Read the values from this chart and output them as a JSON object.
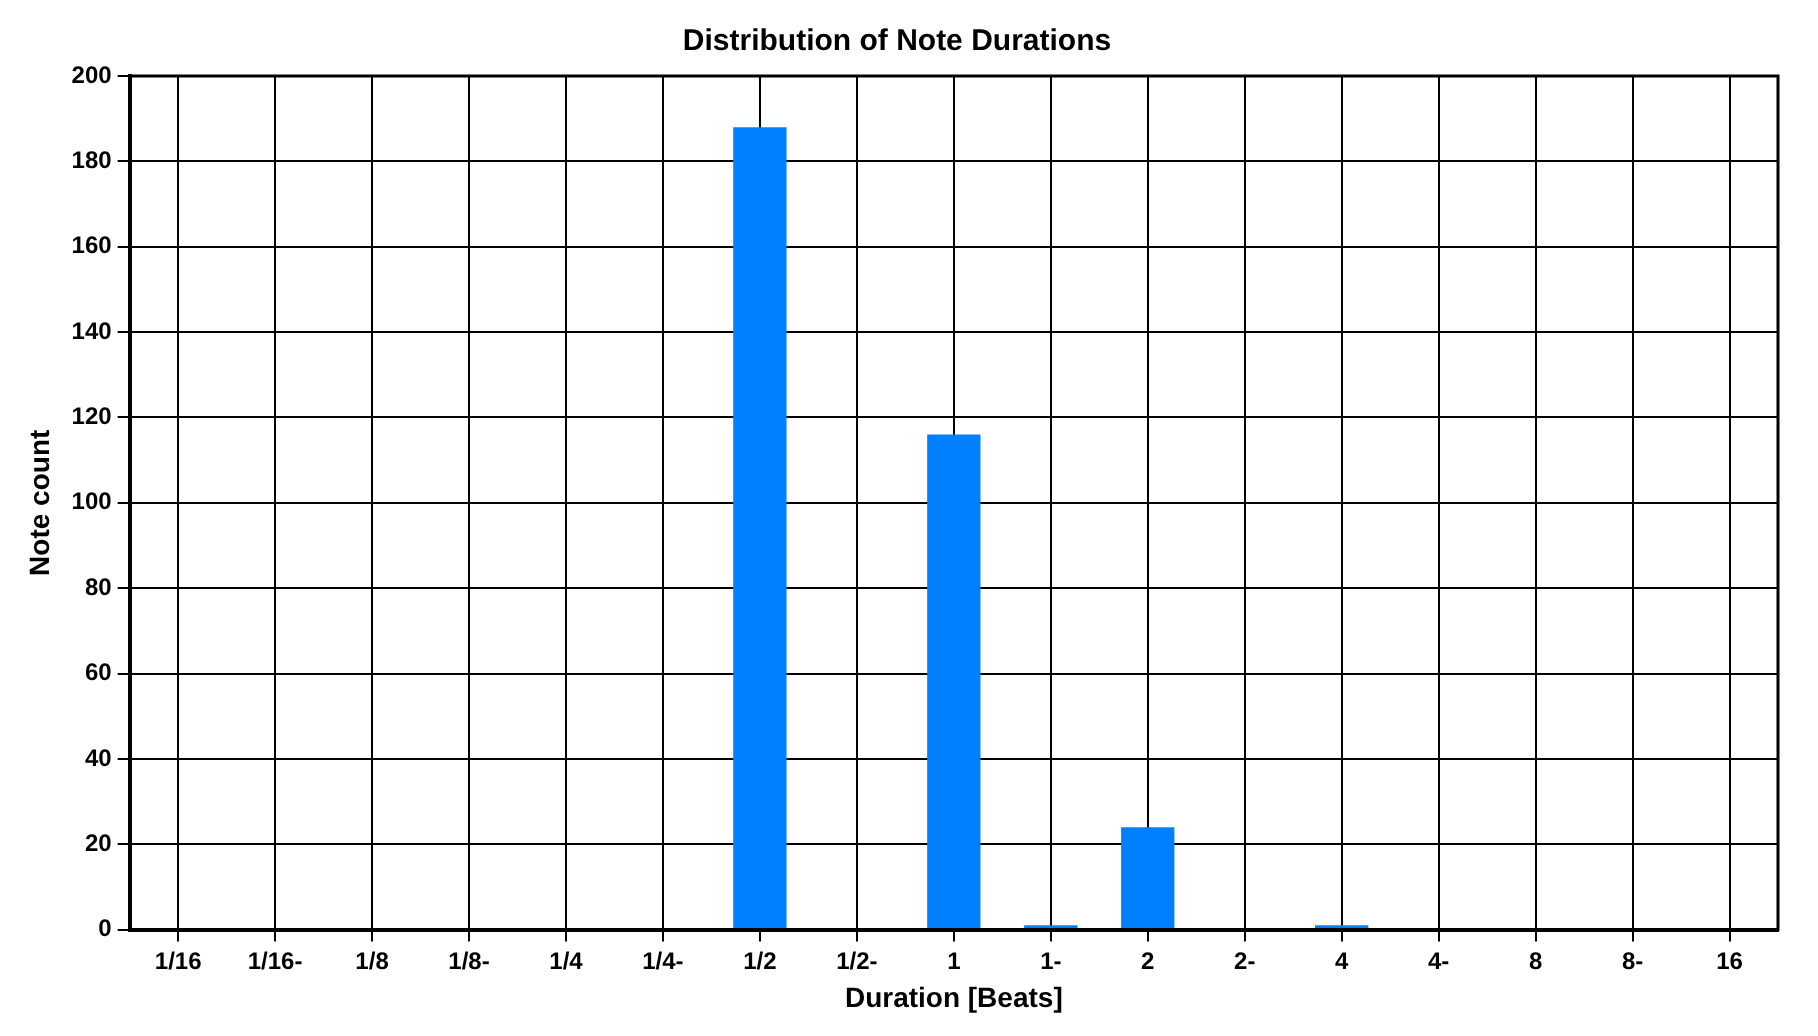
{
  "chart_data": {
    "type": "bar",
    "title": "Distribution of Note Durations",
    "xlabel": "Duration [Beats]",
    "ylabel": "Note count",
    "categories": [
      "1/16",
      "1/16-",
      "1/8",
      "1/8-",
      "1/4",
      "1/4-",
      "1/2",
      "1/2-",
      "1",
      "1-",
      "2",
      "2-",
      "4",
      "4-",
      "8",
      "8-",
      "16"
    ],
    "values": [
      0,
      0,
      0,
      0,
      0,
      0,
      188,
      0,
      116,
      1,
      24,
      0,
      1,
      0,
      0,
      0,
      0
    ],
    "color": "#0080ff",
    "ylim": [
      0,
      200
    ],
    "yticks": [
      0,
      20,
      40,
      60,
      80,
      100,
      120,
      140,
      160,
      180,
      200
    ],
    "grid": true
  }
}
